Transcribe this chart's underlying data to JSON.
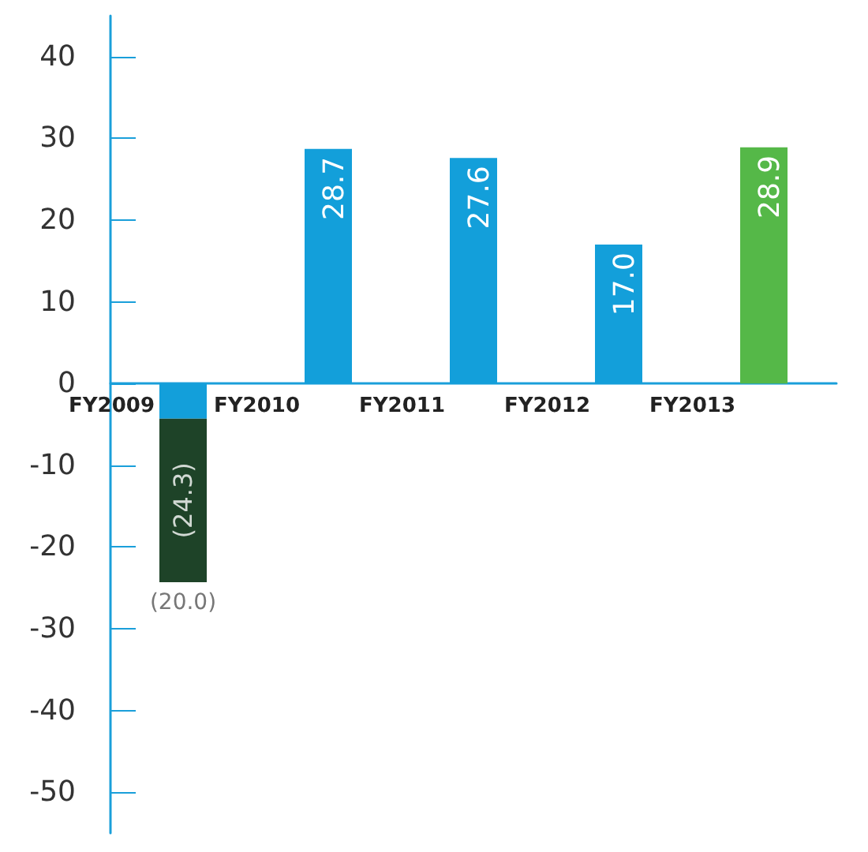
{
  "chart_data": {
    "type": "bar",
    "stacked": true,
    "categories": [
      "FY2009",
      "FY2010",
      "FY2011",
      "FY2012",
      "FY2013"
    ],
    "series": [
      {
        "color": "#139fda",
        "colors": [
          null,
          null,
          null,
          null,
          "#55b848"
        ],
        "values": [
          -4.3,
          28.7,
          27.6,
          17.0,
          28.9
        ],
        "value_labels": [
          null,
          "28.7",
          "27.6",
          "17.0",
          "28.9"
        ]
      },
      {
        "color": "#1e4328",
        "values": [
          -20.0,
          null,
          null,
          null,
          null
        ],
        "value_labels": [
          "(20.0)",
          null,
          null,
          null,
          null
        ]
      }
    ],
    "totals": [
      "(24.3)",
      null,
      null,
      null,
      null
    ],
    "ylim": [
      -55,
      45
    ],
    "yticks": [
      -50,
      -40,
      -30,
      -20,
      -10,
      0,
      10,
      20,
      30,
      40
    ],
    "grid": false,
    "legend": false
  }
}
